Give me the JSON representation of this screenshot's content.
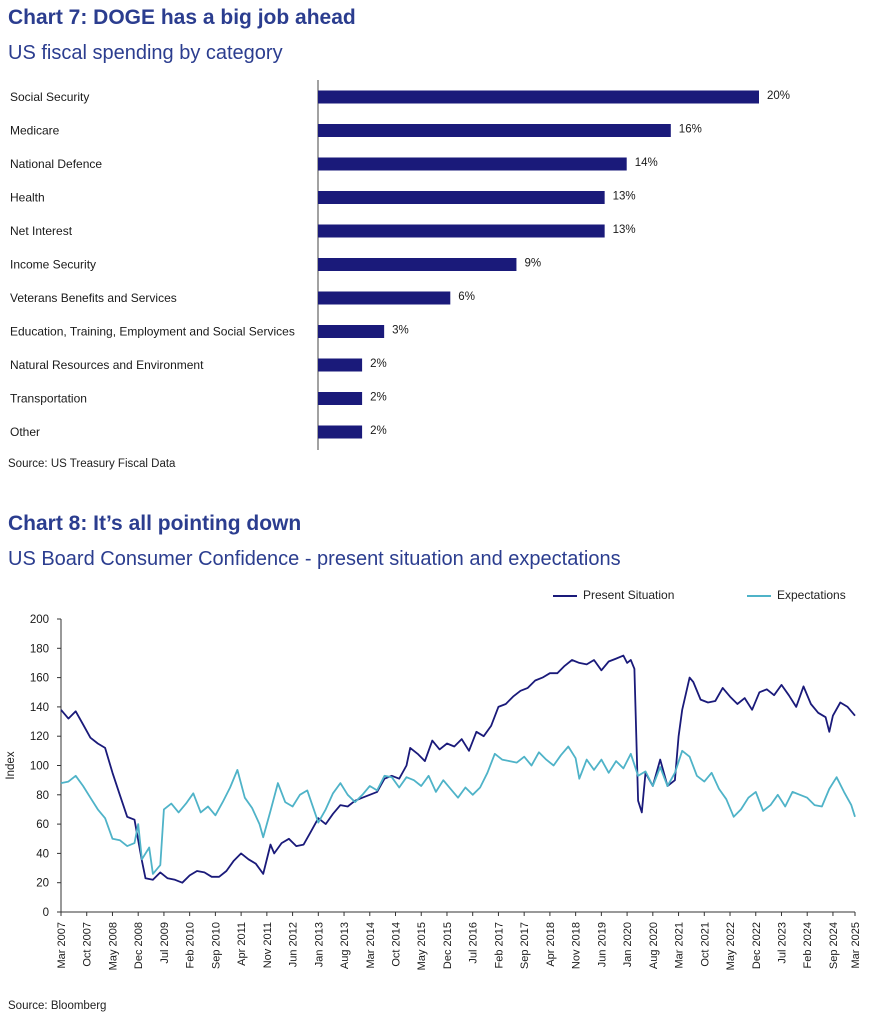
{
  "chart7": {
    "title": "Chart 7: DOGE has a big job ahead",
    "subtitle": "US fiscal spending by category",
    "source": "Source: US Treasury Fiscal Data"
  },
  "chart8": {
    "title": "Chart 8: It’s all pointing down",
    "subtitle": "US Board Consumer Confidence - present situation and expectations",
    "source": "Source: Bloomberg"
  },
  "chart_data": [
    {
      "type": "bar",
      "orientation": "horizontal",
      "title": "Chart 7: DOGE has a big job ahead",
      "subtitle": "US fiscal spending by category",
      "categories": [
        "Social Security",
        "Medicare",
        "National Defence",
        "Health",
        "Net Interest",
        "Income Security",
        "Veterans Benefits and Services",
        "Education, Training, Employment and Social Services",
        "Natural Resources and Environment",
        "Transportation",
        "Other"
      ],
      "values": [
        20,
        16,
        14,
        13,
        13,
        9,
        6,
        3,
        2,
        2,
        2
      ],
      "value_labels": [
        "20%",
        "16%",
        "14%",
        "13%",
        "13%",
        "9%",
        "6%",
        "3%",
        "2%",
        "2%",
        "2%"
      ],
      "bar_color": "#1a1a7a",
      "grid": false
    },
    {
      "type": "line",
      "title": "Chart 8: It’s all pointing down",
      "subtitle": "US Board Consumer Confidence - present situation and expectations",
      "ylabel": "Index",
      "ylim": [
        0,
        200
      ],
      "yticks": [
        0,
        20,
        40,
        60,
        80,
        100,
        120,
        140,
        160,
        180,
        200
      ],
      "xlim": [
        "2007-03",
        "2025-03"
      ],
      "xticks": [
        "Mar 2007",
        "Oct 2007",
        "May 2008",
        "Dec 2008",
        "Jul 2009",
        "Feb 2010",
        "Sep 2010",
        "Apr 2011",
        "Nov 2011",
        "Jun 2012",
        "Jan 2013",
        "Aug 2013",
        "Mar 2014",
        "Oct 2014",
        "May 2015",
        "Dec 2015",
        "Jul 2016",
        "Feb 2017",
        "Sep 2017",
        "Apr 2018",
        "Nov 2018",
        "Jun 2019",
        "Jan 2020",
        "Aug 2020",
        "Mar 2021",
        "Oct 2021",
        "May 2022",
        "Dec 2022",
        "Jul 2023",
        "Feb 2024",
        "Sep 2024",
        "Mar 2025"
      ],
      "legend_position": "top-right",
      "grid": false,
      "series": [
        {
          "name": "Present Situation",
          "color": "#1a1a7a",
          "points": [
            [
              "2007-03",
              138
            ],
            [
              "2007-05",
              132
            ],
            [
              "2007-07",
              137
            ],
            [
              "2007-09",
              128
            ],
            [
              "2007-11",
              119
            ],
            [
              "2008-01",
              115
            ],
            [
              "2008-03",
              112
            ],
            [
              "2008-05",
              95
            ],
            [
              "2008-07",
              80
            ],
            [
              "2008-09",
              65
            ],
            [
              "2008-11",
              63
            ],
            [
              "2009-01",
              35
            ],
            [
              "2009-02",
              23
            ],
            [
              "2009-04",
              22
            ],
            [
              "2009-06",
              27
            ],
            [
              "2009-08",
              23
            ],
            [
              "2009-10",
              22
            ],
            [
              "2009-12",
              20
            ],
            [
              "2010-02",
              25
            ],
            [
              "2010-04",
              28
            ],
            [
              "2010-06",
              27
            ],
            [
              "2010-08",
              24
            ],
            [
              "2010-10",
              24
            ],
            [
              "2010-12",
              28
            ],
            [
              "2011-02",
              35
            ],
            [
              "2011-04",
              40
            ],
            [
              "2011-06",
              36
            ],
            [
              "2011-08",
              33
            ],
            [
              "2011-10",
              26
            ],
            [
              "2011-12",
              46
            ],
            [
              "2012-01",
              40
            ],
            [
              "2012-03",
              47
            ],
            [
              "2012-05",
              50
            ],
            [
              "2012-07",
              45
            ],
            [
              "2012-09",
              46
            ],
            [
              "2012-11",
              55
            ],
            [
              "2013-01",
              64
            ],
            [
              "2013-03",
              60
            ],
            [
              "2013-05",
              67
            ],
            [
              "2013-07",
              73
            ],
            [
              "2013-09",
              72
            ],
            [
              "2013-11",
              76
            ],
            [
              "2014-01",
              78
            ],
            [
              "2014-03",
              80
            ],
            [
              "2014-05",
              82
            ],
            [
              "2014-07",
              91
            ],
            [
              "2014-09",
              93
            ],
            [
              "2014-11",
              91
            ],
            [
              "2015-01",
              100
            ],
            [
              "2015-02",
              112
            ],
            [
              "2015-04",
              108
            ],
            [
              "2015-06",
              103
            ],
            [
              "2015-08",
              117
            ],
            [
              "2015-10",
              111
            ],
            [
              "2015-12",
              115
            ],
            [
              "2016-02",
              113
            ],
            [
              "2016-04",
              118
            ],
            [
              "2016-06",
              110
            ],
            [
              "2016-08",
              123
            ],
            [
              "2016-10",
              120
            ],
            [
              "2016-12",
              127
            ],
            [
              "2017-02",
              140
            ],
            [
              "2017-04",
              142
            ],
            [
              "2017-06",
              147
            ],
            [
              "2017-08",
              151
            ],
            [
              "2017-10",
              153
            ],
            [
              "2017-12",
              158
            ],
            [
              "2018-02",
              160
            ],
            [
              "2018-04",
              163
            ],
            [
              "2018-06",
              163
            ],
            [
              "2018-08",
              168
            ],
            [
              "2018-10",
              172
            ],
            [
              "2018-12",
              170
            ],
            [
              "2019-02",
              169
            ],
            [
              "2019-04",
              172
            ],
            [
              "2019-06",
              165
            ],
            [
              "2019-08",
              171
            ],
            [
              "2019-10",
              173
            ],
            [
              "2019-12",
              175
            ],
            [
              "2020-01",
              170
            ],
            [
              "2020-02",
              172
            ],
            [
              "2020-03",
              166
            ],
            [
              "2020-04",
              76
            ],
            [
              "2020-05",
              68
            ],
            [
              "2020-06",
              95
            ],
            [
              "2020-08",
              86
            ],
            [
              "2020-10",
              104
            ],
            [
              "2020-12",
              86
            ],
            [
              "2021-02",
              90
            ],
            [
              "2021-03",
              120
            ],
            [
              "2021-04",
              138
            ],
            [
              "2021-06",
              160
            ],
            [
              "2021-07",
              157
            ],
            [
              "2021-09",
              145
            ],
            [
              "2021-11",
              143
            ],
            [
              "2022-01",
              144
            ],
            [
              "2022-03",
              153
            ],
            [
              "2022-05",
              147
            ],
            [
              "2022-07",
              142
            ],
            [
              "2022-09",
              146
            ],
            [
              "2022-11",
              138
            ],
            [
              "2023-01",
              150
            ],
            [
              "2023-03",
              152
            ],
            [
              "2023-05",
              148
            ],
            [
              "2023-07",
              155
            ],
            [
              "2023-09",
              148
            ],
            [
              "2023-11",
              140
            ],
            [
              "2024-01",
              154
            ],
            [
              "2024-03",
              142
            ],
            [
              "2024-05",
              136
            ],
            [
              "2024-07",
              133
            ],
            [
              "2024-08",
              123
            ],
            [
              "2024-09",
              134
            ],
            [
              "2024-11",
              143
            ],
            [
              "2025-01",
              140
            ],
            [
              "2025-03",
              134
            ]
          ]
        },
        {
          "name": "Expectations",
          "color": "#4fb3c8",
          "points": [
            [
              "2007-03",
              88
            ],
            [
              "2007-05",
              89
            ],
            [
              "2007-07",
              93
            ],
            [
              "2007-09",
              86
            ],
            [
              "2007-11",
              78
            ],
            [
              "2008-01",
              70
            ],
            [
              "2008-03",
              64
            ],
            [
              "2008-05",
              50
            ],
            [
              "2008-07",
              49
            ],
            [
              "2008-09",
              45
            ],
            [
              "2008-11",
              47
            ],
            [
              "2008-12",
              60
            ],
            [
              "2009-01",
              36
            ],
            [
              "2009-03",
              44
            ],
            [
              "2009-04",
              26
            ],
            [
              "2009-06",
              32
            ],
            [
              "2009-07",
              70
            ],
            [
              "2009-09",
              74
            ],
            [
              "2009-11",
              68
            ],
            [
              "2010-01",
              74
            ],
            [
              "2010-03",
              81
            ],
            [
              "2010-05",
              68
            ],
            [
              "2010-07",
              72
            ],
            [
              "2010-09",
              66
            ],
            [
              "2010-11",
              75
            ],
            [
              "2011-01",
              85
            ],
            [
              "2011-03",
              97
            ],
            [
              "2011-05",
              78
            ],
            [
              "2011-07",
              71
            ],
            [
              "2011-09",
              60
            ],
            [
              "2011-10",
              51
            ],
            [
              "2011-12",
              69
            ],
            [
              "2012-02",
              88
            ],
            [
              "2012-04",
              75
            ],
            [
              "2012-06",
              72
            ],
            [
              "2012-08",
              80
            ],
            [
              "2012-10",
              83
            ],
            [
              "2013-01",
              61
            ],
            [
              "2013-03",
              70
            ],
            [
              "2013-05",
              81
            ],
            [
              "2013-07",
              88
            ],
            [
              "2013-09",
              80
            ],
            [
              "2013-11",
              75
            ],
            [
              "2014-01",
              80
            ],
            [
              "2014-03",
              86
            ],
            [
              "2014-05",
              83
            ],
            [
              "2014-07",
              93
            ],
            [
              "2014-09",
              92
            ],
            [
              "2014-11",
              85
            ],
            [
              "2015-01",
              92
            ],
            [
              "2015-03",
              90
            ],
            [
              "2015-05",
              86
            ],
            [
              "2015-07",
              93
            ],
            [
              "2015-09",
              82
            ],
            [
              "2015-11",
              90
            ],
            [
              "2016-01",
              84
            ],
            [
              "2016-03",
              78
            ],
            [
              "2016-05",
              85
            ],
            [
              "2016-07",
              80
            ],
            [
              "2016-09",
              85
            ],
            [
              "2016-11",
              95
            ],
            [
              "2017-01",
              108
            ],
            [
              "2017-03",
              104
            ],
            [
              "2017-05",
              103
            ],
            [
              "2017-07",
              102
            ],
            [
              "2017-09",
              106
            ],
            [
              "2017-11",
              100
            ],
            [
              "2018-01",
              109
            ],
            [
              "2018-03",
              104
            ],
            [
              "2018-05",
              100
            ],
            [
              "2018-07",
              107
            ],
            [
              "2018-09",
              113
            ],
            [
              "2018-11",
              105
            ],
            [
              "2018-12",
              91
            ],
            [
              "2019-02",
              104
            ],
            [
              "2019-04",
              97
            ],
            [
              "2019-06",
              104
            ],
            [
              "2019-08",
              95
            ],
            [
              "2019-10",
              103
            ],
            [
              "2019-12",
              98
            ],
            [
              "2020-02",
              108
            ],
            [
              "2020-04",
              93
            ],
            [
              "2020-06",
              96
            ],
            [
              "2020-08",
              86
            ],
            [
              "2020-10",
              99
            ],
            [
              "2020-12",
              86
            ],
            [
              "2021-02",
              95
            ],
            [
              "2021-04",
              110
            ],
            [
              "2021-06",
              106
            ],
            [
              "2021-08",
              93
            ],
            [
              "2021-10",
              89
            ],
            [
              "2021-12",
              95
            ],
            [
              "2022-02",
              84
            ],
            [
              "2022-04",
              77
            ],
            [
              "2022-06",
              65
            ],
            [
              "2022-08",
              70
            ],
            [
              "2022-10",
              78
            ],
            [
              "2022-12",
              82
            ],
            [
              "2023-02",
              69
            ],
            [
              "2023-04",
              73
            ],
            [
              "2023-06",
              80
            ],
            [
              "2023-08",
              72
            ],
            [
              "2023-10",
              82
            ],
            [
              "2023-12",
              80
            ],
            [
              "2024-02",
              78
            ],
            [
              "2024-04",
              73
            ],
            [
              "2024-06",
              72
            ],
            [
              "2024-08",
              84
            ],
            [
              "2024-10",
              92
            ],
            [
              "2024-12",
              82
            ],
            [
              "2025-02",
              73
            ],
            [
              "2025-03",
              65
            ]
          ]
        }
      ]
    }
  ]
}
